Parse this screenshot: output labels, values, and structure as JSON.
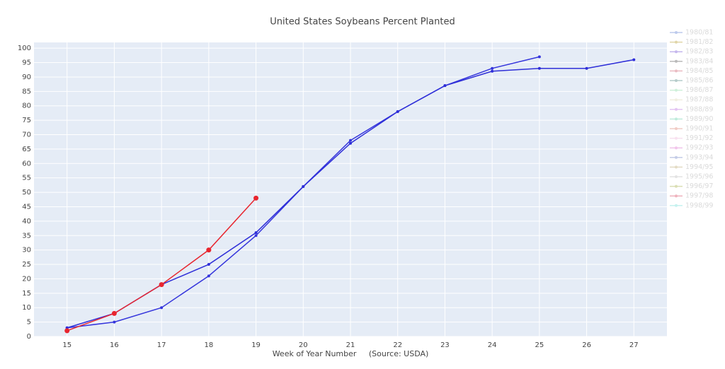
{
  "chart_data": {
    "type": "line",
    "title": "United States Soybeans Percent Planted",
    "x_label": "Week of Year Number     (Source: USDA)",
    "x": [
      15,
      16,
      17,
      18,
      19,
      20,
      21,
      22,
      23,
      24,
      25,
      26,
      27
    ],
    "series": [
      {
        "color": "#3535dc",
        "values": [
          3,
          5,
          10,
          21,
          35,
          52,
          68,
          78,
          87,
          93,
          97,
          null,
          null
        ]
      },
      {
        "color": "#2f2fd8",
        "values": [
          3,
          8,
          18,
          25,
          36,
          52,
          67,
          78,
          87,
          92,
          93,
          93,
          96
        ]
      },
      {
        "color": "#e8252e",
        "values": [
          2,
          8,
          18,
          30,
          48,
          null,
          null,
          null,
          null,
          null,
          null,
          null,
          null
        ]
      }
    ],
    "legend": [
      {
        "name": "1980/81",
        "color": "#7d96db"
      },
      {
        "name": "1981/82",
        "color": "#c2ad52"
      },
      {
        "name": "1982/83",
        "color": "#8c72dd"
      },
      {
        "name": "1983/84",
        "color": "#777777"
      },
      {
        "name": "1984/85",
        "color": "#d77a86"
      },
      {
        "name": "1985/86",
        "color": "#6f9a96"
      },
      {
        "name": "1986/87",
        "color": "#9fe3b6"
      },
      {
        "name": "1987/88",
        "color": "#e5e0c2"
      },
      {
        "name": "1988/89",
        "color": "#c98ae8"
      },
      {
        "name": "1989/90",
        "color": "#7fd9b8"
      },
      {
        "name": "1990/91",
        "color": "#e49a8d"
      },
      {
        "name": "1991/92",
        "color": "#f2c4e3"
      },
      {
        "name": "1992/93",
        "color": "#e58ad8"
      },
      {
        "name": "1993/94",
        "color": "#8b9bd1"
      },
      {
        "name": "1994/95",
        "color": "#c9b98b"
      },
      {
        "name": "1995/96",
        "color": "#c8c8c8"
      },
      {
        "name": "1996/97",
        "color": "#b7bf6c"
      },
      {
        "name": "1997/98",
        "color": "#e06a7e"
      },
      {
        "name": "1998/99",
        "color": "#8ce6e0"
      }
    ],
    "xlim": [
      14.3,
      27.7
    ],
    "xticks": [
      15,
      16,
      17,
      18,
      19,
      20,
      21,
      22,
      23,
      24,
      25,
      26,
      27
    ],
    "ylim": [
      0,
      102
    ],
    "yticks": [
      0,
      5,
      10,
      15,
      20,
      25,
      30,
      35,
      40,
      45,
      50,
      55,
      60,
      65,
      70,
      75,
      80,
      85,
      90,
      95,
      100
    ],
    "grid": true
  }
}
